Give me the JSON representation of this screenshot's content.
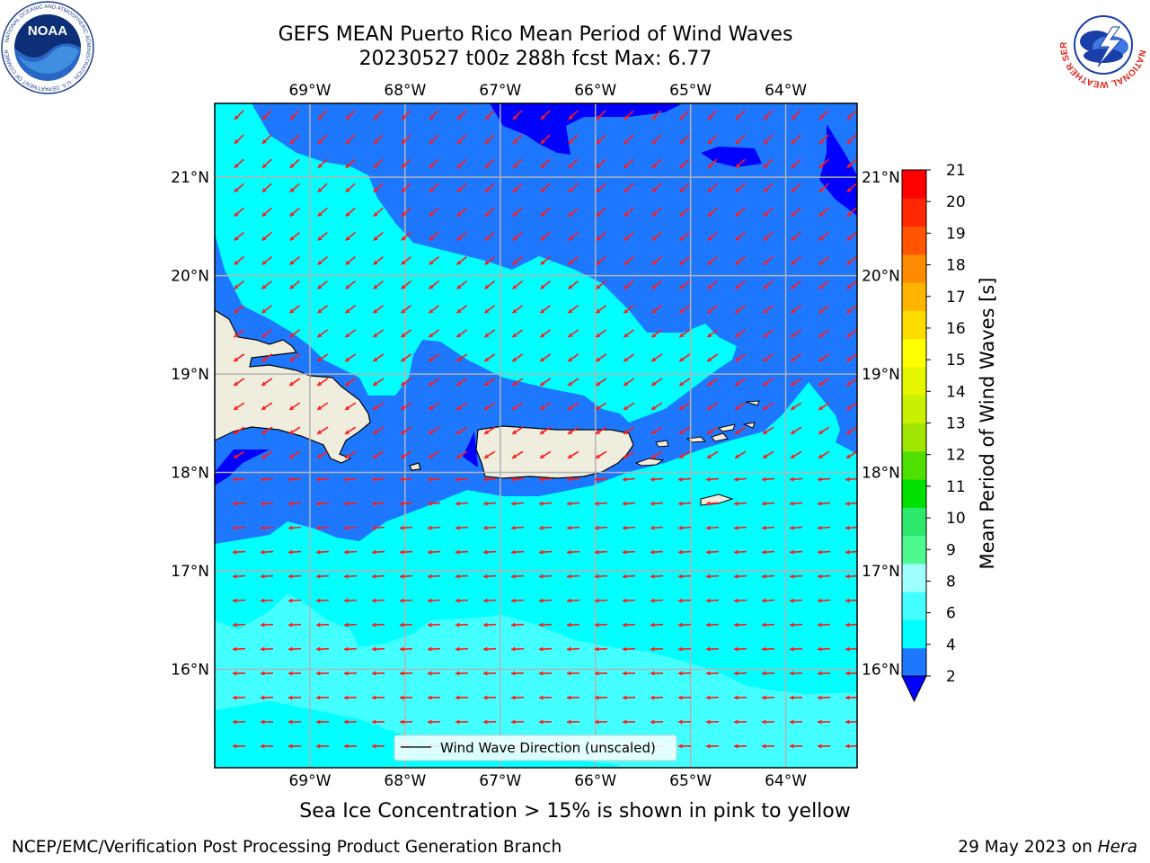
{
  "title": {
    "line1": "GEFS MEAN Puerto Rico Mean Period of Wind Waves",
    "line2": "20230527 t00z 288h fcst   Max: 6.77"
  },
  "map": {
    "type": "filled-contour-map",
    "region": "Puerto Rico",
    "lon_ticks": [
      "69°W",
      "68°W",
      "67°W",
      "66°W",
      "65°W",
      "64°W"
    ],
    "lat_ticks": [
      "21°N",
      "20°N",
      "19°N",
      "18°N",
      "17°N",
      "16°N"
    ],
    "lon_range": [
      -70.0,
      -63.25
    ],
    "lat_range": [
      15.0,
      21.75
    ],
    "grid": true,
    "legend": {
      "label": "Wind Wave Direction (unscaled)",
      "placement": "lower-center"
    },
    "arrow_color": "#ff1a1a",
    "land_color": "#efedde"
  },
  "colorbar": {
    "label": "Mean Period of Wind Waves [s]",
    "ticks": [
      "2",
      "4",
      "6",
      "8",
      "9",
      "10",
      "11",
      "12",
      "13",
      "14",
      "15",
      "16",
      "17",
      "18",
      "19",
      "20",
      "21"
    ],
    "colors": [
      "#1e78ff",
      "#00ffff",
      "#43ffff",
      "#a0ffff",
      "#4dfa90",
      "#2ee86b",
      "#00e100",
      "#50e000",
      "#a0e600",
      "#c8f000",
      "#e6f500",
      "#ffff00",
      "#ffdc00",
      "#ffb400",
      "#ff8c00",
      "#ff5500",
      "#ff2800",
      "#ff0000"
    ],
    "under_color": "#0000ff",
    "extend": "min"
  },
  "sea_ice_note": "Sea Ice Concentration > 15% is shown in pink to yellow",
  "footer": {
    "left": "NCEP/EMC/Verification Post Processing Product Generation Branch",
    "right_date": "29 May 2023 on",
    "right_system": "Hera"
  },
  "logos": {
    "noaa": {
      "text": "NOAA",
      "ring_text": "NATIONAL OCEANIC AND ATMOSPHERIC ADMINISTRATION · U.S. DEPARTMENT OF COMMERCE"
    },
    "nws": {
      "ring_text": "NATIONAL WEATHER SERVICE"
    }
  }
}
